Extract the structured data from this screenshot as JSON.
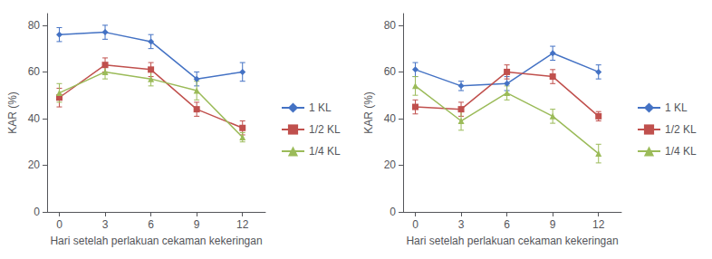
{
  "chart_data": [
    {
      "type": "line",
      "x": [
        0,
        3,
        6,
        9,
        12
      ],
      "series": [
        {
          "name": "1 KL",
          "color": "#4472C4",
          "marker": "diamond",
          "values": [
            76,
            77,
            73,
            57,
            60
          ],
          "yerr": [
            3,
            3,
            3,
            3,
            4
          ]
        },
        {
          "name": "1/2 KL",
          "color": "#C0504D",
          "marker": "square",
          "values": [
            49,
            63,
            61,
            44,
            36
          ],
          "yerr": [
            4,
            3,
            3,
            3,
            3
          ]
        },
        {
          "name": "1/4 KL",
          "color": "#9BBB59",
          "marker": "triangle",
          "values": [
            51,
            60,
            57,
            52,
            32
          ],
          "yerr": [
            4,
            3,
            3,
            4,
            2
          ]
        }
      ],
      "xlabel": "Hari setelah perlakuan cekaman kekeringan",
      "ylabel": "KAR (%)",
      "xlim": [
        -0.8,
        13.5
      ],
      "ylim": [
        0,
        85
      ],
      "xticks": [
        0,
        3,
        6,
        9,
        12
      ],
      "yticks": [
        0,
        20,
        40,
        60,
        80
      ],
      "grid": false,
      "legend": "right"
    },
    {
      "type": "line",
      "x": [
        0,
        3,
        6,
        9,
        12
      ],
      "series": [
        {
          "name": "1 KL",
          "color": "#4472C4",
          "marker": "diamond",
          "values": [
            61,
            54,
            55,
            68,
            60
          ],
          "yerr": [
            3,
            2,
            3,
            3,
            3
          ]
        },
        {
          "name": "1/2 KL",
          "color": "#C0504D",
          "marker": "square",
          "values": [
            45,
            44,
            60,
            58,
            41
          ],
          "yerr": [
            3,
            3,
            3,
            3,
            2
          ]
        },
        {
          "name": "1/4 KL",
          "color": "#9BBB59",
          "marker": "triangle",
          "values": [
            54,
            39,
            51,
            41,
            25
          ],
          "yerr": [
            4,
            4,
            3,
            3,
            4
          ]
        }
      ],
      "xlabel": "Hari setelah perlakuan cekaman kekeringan",
      "ylabel": "KAR (%)",
      "xlim": [
        -0.8,
        13.5
      ],
      "ylim": [
        0,
        85
      ],
      "xticks": [
        0,
        3,
        6,
        9,
        12
      ],
      "yticks": [
        0,
        20,
        40,
        60,
        80
      ],
      "grid": false,
      "legend": "right"
    }
  ]
}
